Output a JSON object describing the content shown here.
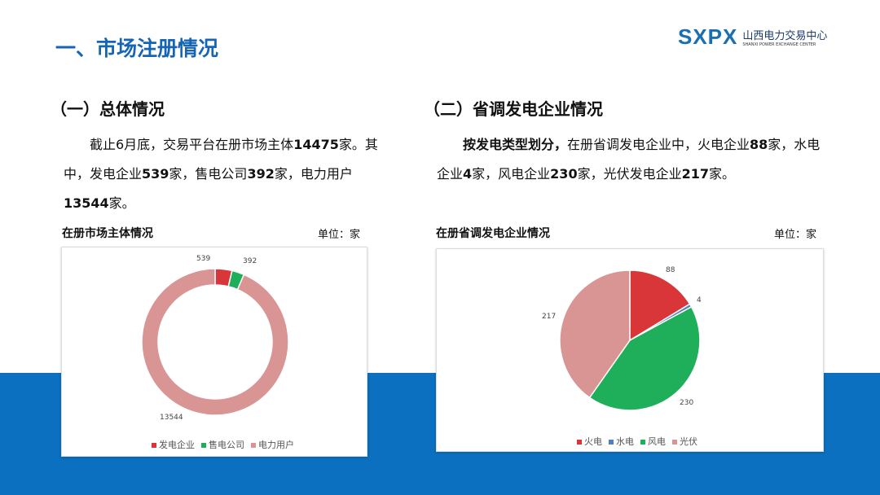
{
  "header": {
    "title": "一、市场注册情况",
    "logo_mark": "SXPX",
    "logo_cn": "山西电力交易中心",
    "logo_en": "SHANXI POWER EXCHANGE CENTER"
  },
  "left": {
    "subtitle": "（一）总体情况",
    "para": [
      "截止6月底，交易平台在册市场主体",
      "14475",
      "家。其中，发电企业",
      "539",
      "家，售电公司",
      "392",
      "家，电力用户",
      "13544",
      "家。"
    ]
  },
  "right": {
    "subtitle": "（二）省调发电企业情况",
    "para": [
      "按发电类型划分，",
      "在册省调发电企业中，火电企业",
      "88",
      "家，水电企业",
      "4",
      "家，风电企业",
      "230",
      "家，光伏发电企业",
      "217",
      "家。"
    ]
  },
  "chart_data": [
    {
      "type": "pie",
      "variant": "donut",
      "title": "在册市场主体情况",
      "unit": "单位：家",
      "categories": [
        "发电企业",
        "售电公司",
        "电力用户"
      ],
      "values": [
        539,
        392,
        13544
      ],
      "colors": [
        "#d9363a",
        "#1fae5a",
        "#d99494"
      ],
      "legend": "bottom"
    },
    {
      "type": "pie",
      "title": "在册省调发电企业情况",
      "unit": "单位：家",
      "categories": [
        "火电",
        "水电",
        "风电",
        "光伏"
      ],
      "values": [
        88,
        4,
        230,
        217
      ],
      "colors": [
        "#d9363a",
        "#4f81bd",
        "#1fae5a",
        "#d99494"
      ],
      "legend": "bottom"
    }
  ]
}
